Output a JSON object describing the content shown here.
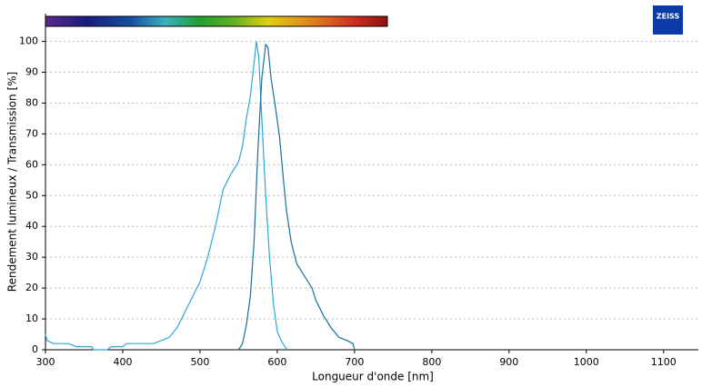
{
  "chart_data": {
    "type": "line",
    "logo": "ZEISS",
    "x_label": "Longueur d'onde [nm]",
    "y_label": "Rendement lumineux / Transmission [%]",
    "xlim": [
      300,
      1145
    ],
    "ylim": [
      0,
      109
    ],
    "xticks": [
      300,
      400,
      500,
      600,
      700,
      800,
      900,
      1000,
      1100
    ],
    "yticks": [
      0,
      10,
      20,
      30,
      40,
      50,
      60,
      70,
      80,
      90,
      100
    ],
    "grid": true,
    "series": [
      {
        "color": "#2aa8d8",
        "x": [
          300,
          302,
          310,
          330,
          335,
          340,
          360,
          362,
          380,
          385,
          400,
          405,
          440,
          450,
          460,
          470,
          480,
          490,
          500,
          510,
          520,
          530,
          540,
          550,
          555,
          560,
          565,
          570,
          573,
          576,
          580,
          585,
          590,
          595,
          600,
          605,
          610,
          613
        ],
        "values": [
          5,
          3,
          2,
          2,
          1.5,
          1,
          1,
          0,
          0,
          1,
          1,
          2,
          2,
          3,
          4,
          7,
          12,
          17,
          22,
          30,
          40,
          52,
          57,
          61,
          66,
          75,
          82,
          93,
          100,
          95,
          75,
          50,
          30,
          15,
          6,
          3,
          1,
          0
        ]
      },
      {
        "color": "#17709f",
        "x": [
          550,
          555,
          560,
          565,
          570,
          575,
          580,
          585,
          588,
          592,
          598,
          603,
          608,
          612,
          618,
          625,
          635,
          645,
          650,
          660,
          670,
          680,
          690,
          698,
          700
        ],
        "values": [
          0,
          2,
          8,
          17,
          35,
          65,
          88,
          99,
          98,
          88,
          78,
          69,
          55,
          45,
          35,
          28,
          24,
          20,
          16,
          11,
          7,
          4,
          3,
          2,
          0
        ]
      }
    ]
  }
}
